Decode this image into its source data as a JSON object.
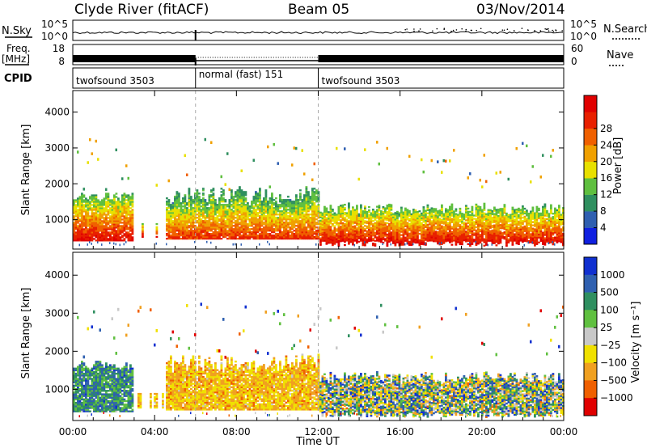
{
  "header": {
    "station": "Clyde River (fitACF)",
    "beam": "Beam 05",
    "date": "03/Nov/2014"
  },
  "param_panels": {
    "nsky_label": "N.Sky",
    "nsky_ticks": [
      "10^5",
      "10^0"
    ],
    "nsearch_label": "N.Search",
    "nsearch_ticks": [
      "10^5",
      "10^0"
    ],
    "freq_label_1": "Freq.",
    "freq_label_2": "[MHz]",
    "freq_ticks": [
      "18",
      "8"
    ],
    "nave_label": "Nave",
    "nave_ticks": [
      "60",
      "0"
    ],
    "cpid_label": "CPID",
    "cpid_segments": [
      {
        "label": "twofsound 3503",
        "start_h": 0,
        "end_h": 6
      },
      {
        "label": "normal (fast) 151",
        "start_h": 6,
        "end_h": 12
      },
      {
        "label": "twofsound 3503",
        "start_h": 12,
        "end_h": 24
      }
    ]
  },
  "chart_data": [
    {
      "type": "heatmap",
      "panel": "power",
      "ylabel": "Slant Range [km]",
      "xlabel": "Time UT",
      "xlim": [
        "00:00",
        "24:00"
      ],
      "x_ticks": [
        "00:00",
        "04:00",
        "08:00",
        "12:00",
        "16:00",
        "20:00",
        "00:00"
      ],
      "ylim": [
        180,
        4600
      ],
      "y_ticks": [
        1000,
        2000,
        3000,
        4000
      ],
      "colorbar": {
        "label": "Power [dB]",
        "ticks": [
          "4",
          "8",
          "12",
          "16",
          "20",
          "24",
          "28"
        ],
        "colors": [
          "#1020e0",
          "#2f5fb0",
          "#2f8f5f",
          "#5fbf3f",
          "#e8e000",
          "#f0a000",
          "#f06000",
          "#e82000",
          "#e00000"
        ]
      },
      "dominant_bands": [
        {
          "start_h": 0.0,
          "end_h": 2.9,
          "range_km": [
            400,
            1700
          ],
          "value_db": 28
        },
        {
          "start_h": 4.5,
          "end_h": 12.0,
          "range_km": [
            400,
            1800
          ],
          "value_db": 24
        },
        {
          "start_h": 12.0,
          "end_h": 24.0,
          "range_km": [
            250,
            1300
          ],
          "value_db": 28
        }
      ]
    },
    {
      "type": "heatmap",
      "panel": "velocity",
      "ylabel": "Slant Range [km]",
      "xlabel": "Time UT",
      "xlim": [
        "00:00",
        "24:00"
      ],
      "x_ticks": [
        "00:00",
        "04:00",
        "08:00",
        "12:00",
        "16:00",
        "20:00",
        "00:00"
      ],
      "ylim": [
        180,
        4600
      ],
      "y_ticks": [
        1000,
        2000,
        3000,
        4000
      ],
      "colorbar": {
        "label": "Velocity [m s⁻¹]",
        "ticks": [
          "1000",
          "500",
          "100",
          "25",
          "−25",
          "−100",
          "−500",
          "−1000"
        ],
        "colors": [
          "#1030d0",
          "#2f60b0",
          "#2f8f60",
          "#60c040",
          "#c8c8c8",
          "#f0e000",
          "#f0a020",
          "#f06000",
          "#e00000"
        ]
      },
      "dominant_bands": [
        {
          "start_h": 0.0,
          "end_h": 2.9,
          "range_km": [
            400,
            1700
          ],
          "value_ms": 200
        },
        {
          "start_h": 4.5,
          "end_h": 12.0,
          "range_km": [
            400,
            1800
          ],
          "value_ms": -300
        },
        {
          "start_h": 12.0,
          "end_h": 24.0,
          "range_km": [
            250,
            1300
          ],
          "value_ms": 150
        }
      ]
    }
  ]
}
